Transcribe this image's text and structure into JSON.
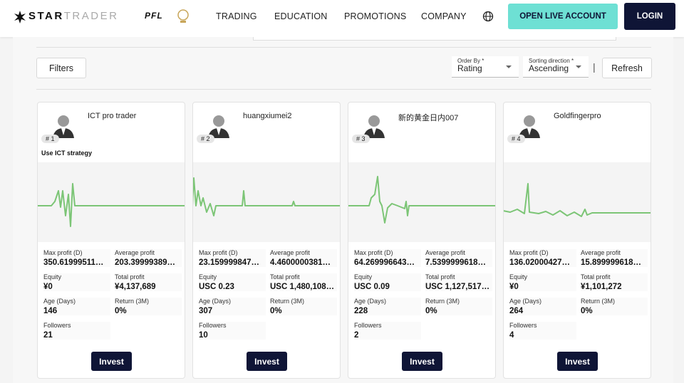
{
  "header": {
    "logo_bold": "STAR",
    "logo_light": "TRADER",
    "partner": "PFL",
    "nav": [
      "TRADING",
      "EDUCATION",
      "PROMOTIONS",
      "COMPANY"
    ],
    "open_account": "OPEN LIVE ACCOUNT",
    "login": "LOGIN"
  },
  "toolbar": {
    "filters": "Filters",
    "order_by_label": "Order By *",
    "order_by_value": "Rating",
    "direction_label": "Sorting direction *",
    "direction_value": "Ascending",
    "separator": "|",
    "refresh": "Refresh"
  },
  "cards": [
    {
      "rank": "# 1",
      "name": "ICT pro trader",
      "strategy": "Use ICT strategy",
      "stats": [
        {
          "label": "Max profit (D)",
          "value": "350.61999511…"
        },
        {
          "label": "Average profit",
          "value": "203.39999389…"
        },
        {
          "label": "Equity",
          "value": "¥0"
        },
        {
          "label": "Total profit",
          "value": "¥4,137,689"
        },
        {
          "label": "Age (Days)",
          "value": "146"
        },
        {
          "label": "Return (3M)",
          "value": "0%"
        },
        {
          "label": "Followers",
          "value": "21"
        }
      ],
      "button": "Invest"
    },
    {
      "rank": "# 2",
      "name": "huangxiumei2",
      "stats": [
        {
          "label": "Max profit (D)",
          "value": "23.159999847…"
        },
        {
          "label": "Average profit",
          "value": "4.4600000381…"
        },
        {
          "label": "Equity",
          "value": "USC 0.23"
        },
        {
          "label": "Total profit",
          "value": "USC 1,480,108…"
        },
        {
          "label": "Age (Days)",
          "value": "307"
        },
        {
          "label": "Return (3M)",
          "value": "0%"
        },
        {
          "label": "Followers",
          "value": "10"
        }
      ],
      "button": "Invest"
    },
    {
      "rank": "# 3",
      "name": "新的黄金日内007",
      "stats": [
        {
          "label": "Max profit (D)",
          "value": "64.269996643…"
        },
        {
          "label": "Average profit",
          "value": "7.5399999618…"
        },
        {
          "label": "Equity",
          "value": "USC 0.09"
        },
        {
          "label": "Total profit",
          "value": "USC 1,127,517…"
        },
        {
          "label": "Age (Days)",
          "value": "228"
        },
        {
          "label": "Return (3M)",
          "value": "0%"
        },
        {
          "label": "Followers",
          "value": "2"
        }
      ],
      "button": "Invest"
    },
    {
      "rank": "# 4",
      "name": "Goldfingerpro",
      "stats": [
        {
          "label": "Max profit (D)",
          "value": "136.02000427…"
        },
        {
          "label": "Average profit",
          "value": "15.899999618…"
        },
        {
          "label": "Equity",
          "value": "¥0"
        },
        {
          "label": "Total profit",
          "value": "¥1,101,272"
        },
        {
          "label": "Age (Days)",
          "value": "264"
        },
        {
          "label": "Return (3M)",
          "value": "0%"
        },
        {
          "label": "Followers",
          "value": "4"
        }
      ],
      "button": "Invest"
    }
  ]
}
